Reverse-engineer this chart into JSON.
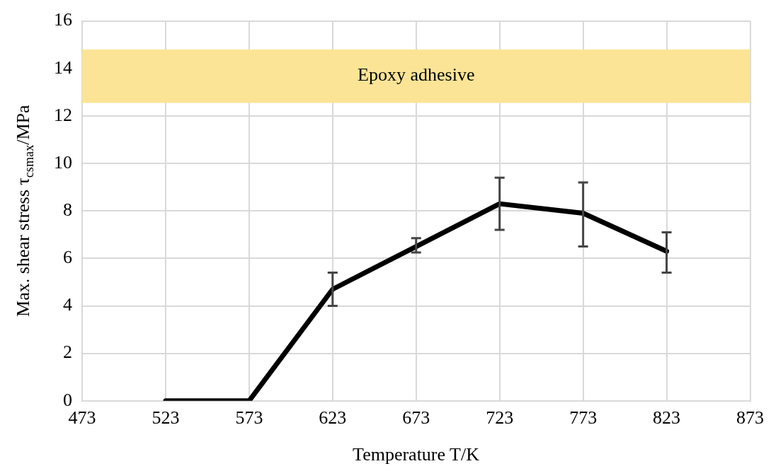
{
  "chart_data": {
    "type": "line",
    "xlabel": "Temperature T/K",
    "ylabel": "Max. shear stress τ$_{csmax}$/MPa",
    "x": [
      523,
      573,
      623,
      673,
      723,
      773,
      823
    ],
    "series": [
      {
        "color": "#000000",
        "values": [
          0,
          0,
          4.7,
          6.5,
          8.3,
          7.9,
          6.3
        ],
        "errors": [
          null,
          null,
          [
            4.0,
            5.4
          ],
          [
            6.25,
            6.85
          ],
          [
            7.2,
            9.4
          ],
          [
            6.5,
            9.2
          ],
          [
            5.4,
            7.1
          ]
        ]
      }
    ],
    "xlim": [
      473,
      873
    ],
    "xticks": [
      473,
      523,
      573,
      623,
      673,
      723,
      773,
      823,
      873
    ],
    "ylim": [
      0,
      16
    ],
    "yticks": [
      0,
      2,
      4,
      6,
      8,
      10,
      12,
      14,
      16
    ],
    "bands": [
      {
        "axis": "y",
        "from": 12.55,
        "to": 14.8,
        "label": "Epoxy adhesive",
        "color": "#fce496"
      }
    ],
    "grid": true,
    "legend": false,
    "marker": "none",
    "line_style": "solid"
  }
}
